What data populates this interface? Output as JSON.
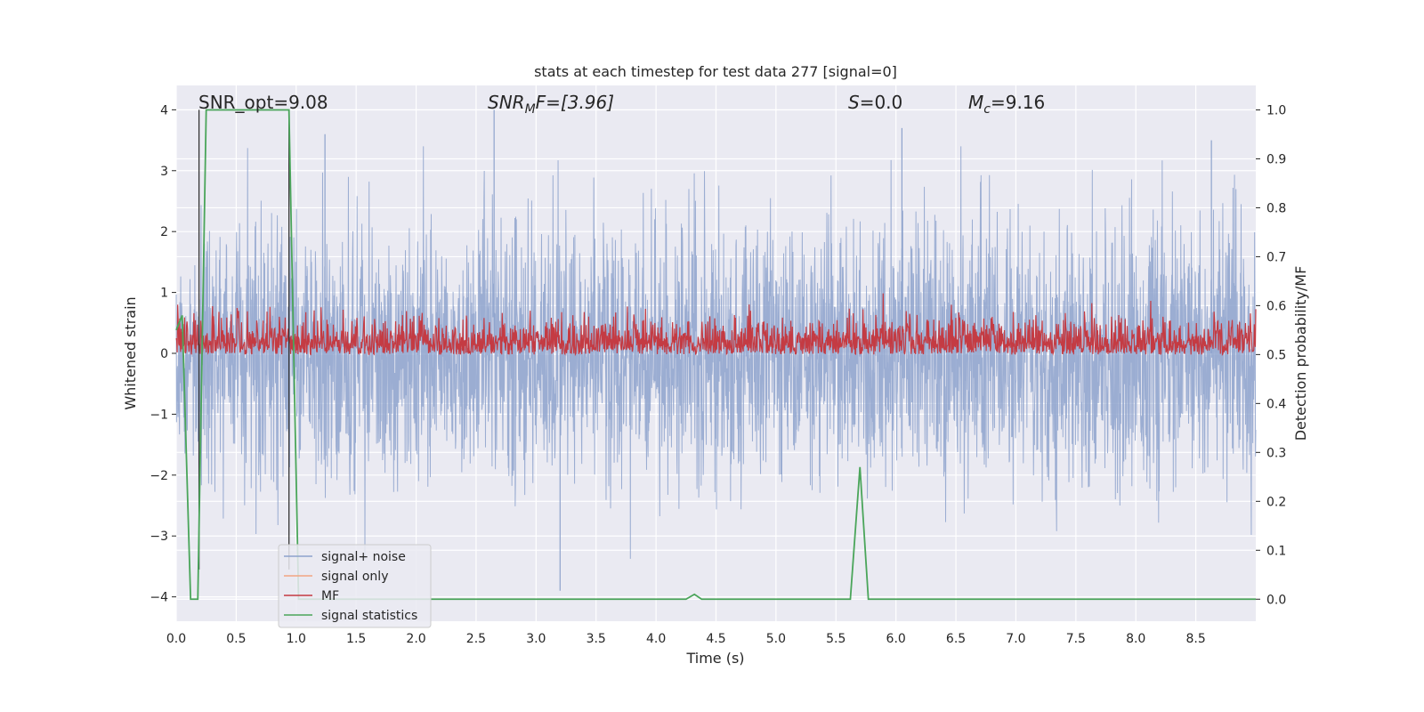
{
  "chart_data": {
    "type": "line",
    "title": "stats at each timestep for test data 277 [signal=0]",
    "xlabel": "Time (s)",
    "ylabel_left": "Whitened strain",
    "ylabel_right": "Detection probability/MF",
    "xlim": [
      0.0,
      9.0
    ],
    "ylim_left": [
      -4.4,
      4.4
    ],
    "ylim_right": [
      -0.045,
      1.05
    ],
    "grid": true,
    "x_ticks": [
      0.0,
      0.5,
      1.0,
      1.5,
      2.0,
      2.5,
      3.0,
      3.5,
      4.0,
      4.5,
      5.0,
      5.5,
      6.0,
      6.5,
      7.0,
      7.5,
      8.0,
      8.5
    ],
    "x_tick_labels": [
      "0.0",
      "0.5",
      "1.0",
      "1.5",
      "2.0",
      "2.5",
      "3.0",
      "3.5",
      "4.0",
      "4.5",
      "5.0",
      "5.5",
      "6.0",
      "6.5",
      "7.0",
      "7.5",
      "8.0",
      "8.5"
    ],
    "y_ticks_left": [
      -4,
      -3,
      -2,
      -1,
      0,
      1,
      2,
      3,
      4
    ],
    "y_tick_labels_left": [
      "−4",
      "−3",
      "−2",
      "−1",
      "0",
      "1",
      "2",
      "3",
      "4"
    ],
    "y_ticks_right": [
      0.0,
      0.1,
      0.2,
      0.3,
      0.4,
      0.5,
      0.6,
      0.7,
      0.8,
      0.9,
      1.0
    ],
    "y_tick_labels_right": [
      "0.0",
      "0.1",
      "0.2",
      "0.3",
      "0.4",
      "0.5",
      "0.6",
      "0.7",
      "0.8",
      "0.9",
      "1.0"
    ],
    "annotations": {
      "snr_opt": "SNR_opt=9.08",
      "snr_mf_main": "SNR",
      "snr_mf_sub": "M",
      "snr_mf_tail": "F=[3.96]",
      "s_main": "S",
      "s_tail": "=0.0",
      "mc_main": "M",
      "mc_sub": "c",
      "mc_tail": "=9.16"
    },
    "vertical_lines_x": [
      0.19,
      0.94
    ],
    "legend": {
      "position": "lower-left",
      "entries": [
        {
          "label": "signal+ noise",
          "color": "#8da2cc"
        },
        {
          "label": "signal only",
          "color": "#f2a582"
        },
        {
          "label": "MF",
          "color": "#c43b43"
        },
        {
          "label": "signal statistics",
          "color": "#4aa55a"
        }
      ]
    },
    "series": [
      {
        "name": "signal+ noise",
        "axis": "left",
        "color": "#8da2cc",
        "description_range": [
          -3.9,
          4.0
        ],
        "envelope_typical": [
          -2.0,
          2.0
        ],
        "peaks": [
          {
            "x": 2.65,
            "y": 4.0
          },
          {
            "x": 1.24,
            "y": 3.6
          },
          {
            "x": 3.2,
            "y": -3.9
          },
          {
            "x": 6.05,
            "y": 3.7
          },
          {
            "x": 8.63,
            "y": 3.5
          }
        ]
      },
      {
        "name": "MF",
        "axis": "right",
        "color": "#c43b43",
        "baseline": 0.5,
        "typical_range": [
          0.5,
          0.62
        ],
        "max": 0.625
      },
      {
        "name": "signal statistics",
        "axis": "right",
        "color": "#4aa55a",
        "x": [
          0.0,
          0.05,
          0.12,
          0.18,
          0.25,
          0.94,
          1.02,
          1.07,
          4.25,
          4.32,
          4.38,
          5.62,
          5.7,
          5.77,
          5.8,
          9.0
        ],
        "y": [
          0.55,
          0.58,
          0.0,
          0.0,
          1.0,
          1.0,
          0.0,
          0.0,
          0.0,
          0.01,
          0.0,
          0.0,
          0.27,
          0.0,
          0.0,
          0.0
        ]
      }
    ]
  }
}
